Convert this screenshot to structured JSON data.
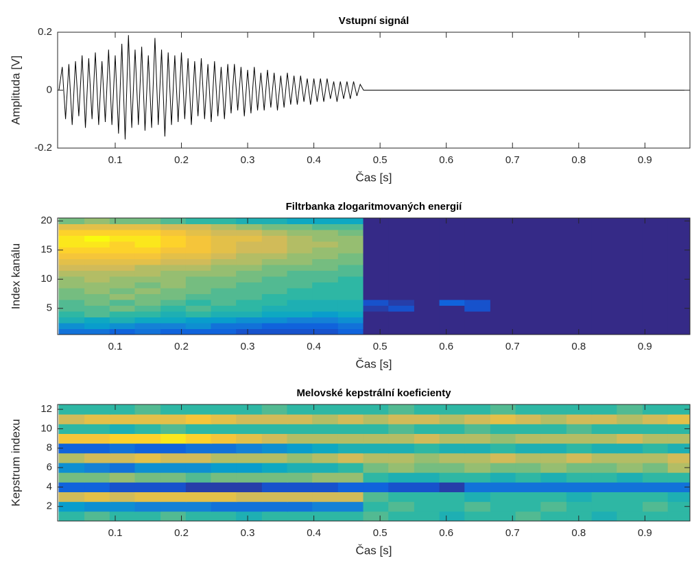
{
  "chart_data": [
    {
      "type": "line",
      "title": "Vstupní signál",
      "xlabel": "Čas [s]",
      "ylabel": "Amplituda [V]",
      "color": "#000000",
      "xlim": [
        0.013,
        0.968
      ],
      "ylim": [
        -0.2,
        0.2
      ],
      "xticks": [
        0.1,
        0.2,
        0.3,
        0.4,
        0.5,
        0.6,
        0.7,
        0.8,
        0.9
      ],
      "yticks": [
        -0.2,
        0,
        0.2
      ],
      "x": [
        0.015,
        0.02,
        0.025,
        0.03,
        0.035,
        0.04,
        0.045,
        0.05,
        0.055,
        0.06,
        0.065,
        0.07,
        0.075,
        0.08,
        0.085,
        0.09,
        0.095,
        0.1,
        0.105,
        0.11,
        0.115,
        0.12,
        0.125,
        0.13,
        0.135,
        0.14,
        0.145,
        0.15,
        0.155,
        0.16,
        0.165,
        0.17,
        0.175,
        0.18,
        0.185,
        0.19,
        0.195,
        0.2,
        0.205,
        0.21,
        0.215,
        0.22,
        0.225,
        0.23,
        0.235,
        0.24,
        0.245,
        0.25,
        0.255,
        0.26,
        0.265,
        0.27,
        0.275,
        0.28,
        0.285,
        0.29,
        0.295,
        0.3,
        0.305,
        0.31,
        0.315,
        0.32,
        0.325,
        0.33,
        0.335,
        0.34,
        0.345,
        0.35,
        0.355,
        0.36,
        0.365,
        0.37,
        0.375,
        0.38,
        0.385,
        0.39,
        0.395,
        0.4,
        0.405,
        0.41,
        0.415,
        0.42,
        0.425,
        0.43,
        0.435,
        0.44,
        0.445,
        0.45,
        0.455,
        0.46,
        0.465,
        0.47,
        0.475,
        0.48,
        0.97
      ],
      "values": [
        0,
        0.08,
        -0.1,
        0.09,
        -0.12,
        0.1,
        -0.09,
        0.12,
        -0.13,
        0.11,
        -0.1,
        0.13,
        -0.12,
        0.1,
        -0.11,
        0.14,
        -0.12,
        0.12,
        -0.15,
        0.16,
        -0.17,
        0.19,
        -0.13,
        0.14,
        -0.12,
        0.15,
        -0.14,
        0.12,
        -0.13,
        0.18,
        -0.12,
        0.14,
        -0.16,
        0.13,
        -0.12,
        0.12,
        -0.11,
        0.13,
        -0.1,
        0.11,
        -0.12,
        0.1,
        -0.09,
        0.11,
        -0.1,
        0.09,
        -0.11,
        0.1,
        -0.09,
        0.08,
        -0.1,
        0.09,
        -0.08,
        0.09,
        -0.07,
        0.08,
        -0.09,
        0.07,
        -0.08,
        0.08,
        -0.07,
        0.06,
        -0.07,
        0.07,
        -0.06,
        0.06,
        -0.07,
        0.05,
        -0.06,
        0.06,
        -0.05,
        0.05,
        -0.05,
        0.05,
        -0.04,
        0.04,
        -0.05,
        0.04,
        -0.04,
        0.04,
        -0.04,
        0.04,
        -0.03,
        0.03,
        -0.04,
        0.03,
        -0.03,
        0.03,
        -0.03,
        0.03,
        -0.02,
        0.02,
        0,
        0,
        0
      ]
    },
    {
      "type": "heatmap",
      "title": "Filtrbanka zlogaritmovaných energií",
      "xlabel": "Čas [s]",
      "ylabel": "Index kanálu",
      "xlim": [
        0.013,
        0.968
      ],
      "ylim": [
        0.5,
        20.5
      ],
      "xticks": [
        0.1,
        0.2,
        0.3,
        0.4,
        0.5,
        0.6,
        0.7,
        0.8,
        0.9
      ],
      "yticks": [
        5,
        10,
        15,
        20
      ],
      "colormap": [
        "#352a87",
        "#0f5cdd",
        "#1481d6",
        "#06a4ca",
        "#2eb7a4",
        "#87bf77",
        "#d1bb59",
        "#fec832",
        "#f9fb0e"
      ],
      "clim": [
        0,
        10
      ],
      "x": [
        0.034,
        0.073,
        0.111,
        0.149,
        0.188,
        0.226,
        0.264,
        0.302,
        0.341,
        0.379,
        0.417,
        0.456,
        0.494,
        0.532,
        0.571,
        0.609,
        0.647,
        0.686,
        0.724,
        0.762,
        0.801,
        0.839,
        0.877,
        0.916,
        0.954
      ],
      "y": [
        1,
        2,
        3,
        4,
        5,
        6,
        7,
        8,
        9,
        10,
        11,
        12,
        13,
        14,
        15,
        16,
        17,
        18,
        19,
        20
      ],
      "z": [
        [
          2,
          2,
          1.5,
          2,
          1.5,
          1.5,
          1.5,
          1,
          1,
          1,
          1,
          1.5,
          0,
          0,
          0,
          0,
          0,
          0,
          0,
          0,
          0,
          0,
          0,
          0,
          0
        ],
        [
          3,
          3.5,
          3,
          2.5,
          2.5,
          3,
          2,
          2,
          1.5,
          1.5,
          1.5,
          2,
          0,
          0,
          0,
          0,
          0,
          0,
          0,
          0,
          0,
          0,
          0,
          0,
          0
        ],
        [
          4.5,
          4,
          4.5,
          4,
          4,
          3.5,
          3.5,
          3,
          3,
          2.5,
          2.5,
          3,
          0,
          0,
          0,
          0,
          0,
          0,
          0,
          0,
          0,
          0,
          0,
          0,
          0
        ],
        [
          5,
          5.5,
          5,
          5,
          4.5,
          5,
          4.5,
          4.5,
          4,
          4,
          3.5,
          4,
          0,
          0,
          0,
          0,
          0,
          0,
          0,
          0,
          0,
          0,
          0,
          0,
          0
        ],
        [
          5.5,
          5.5,
          6,
          5.5,
          5,
          5.5,
          5,
          5,
          4.5,
          4.5,
          4.5,
          4.5,
          0.5,
          1,
          0,
          0,
          1,
          0,
          0,
          0,
          0,
          0,
          0,
          0,
          0
        ],
        [
          5.5,
          6,
          5.5,
          6,
          5.5,
          5,
          5.5,
          5,
          5,
          4.5,
          4.5,
          4.5,
          1,
          0.5,
          0,
          1.5,
          1,
          0,
          0,
          0,
          0,
          0,
          0,
          0,
          0
        ],
        [
          6,
          6,
          6.5,
          6,
          6,
          5.5,
          5.5,
          5.5,
          5,
          5,
          5,
          5,
          0,
          0,
          0,
          0,
          0,
          0,
          0,
          0,
          0,
          0,
          0,
          0,
          0
        ],
        [
          6,
          6.5,
          6,
          6.5,
          6,
          6,
          5.5,
          5.5,
          5.5,
          5,
          5,
          5,
          0,
          0,
          0,
          0,
          0,
          0,
          0,
          0,
          0,
          0,
          0,
          0,
          0
        ],
        [
          6.5,
          6.5,
          6.5,
          6,
          6.5,
          6,
          6,
          5.5,
          5.5,
          5.5,
          5,
          5,
          0,
          0,
          0,
          0,
          0,
          0,
          0,
          0,
          0,
          0,
          0,
          0,
          0
        ],
        [
          6.5,
          7,
          6.5,
          6.5,
          6.5,
          6,
          6,
          6,
          5.5,
          5.5,
          5.5,
          5,
          0,
          0,
          0,
          0,
          0,
          0,
          0,
          0,
          0,
          0,
          0,
          0,
          0
        ],
        [
          7,
          7,
          7,
          7,
          6.5,
          6.5,
          6.5,
          6,
          6,
          5.5,
          5.5,
          5.5,
          0,
          0,
          0,
          0,
          0,
          0,
          0,
          0,
          0,
          0,
          0,
          0,
          0
        ],
        [
          7.5,
          7.5,
          7.5,
          7,
          7,
          7,
          6.5,
          6.5,
          6,
          6,
          6,
          5.5,
          0,
          0,
          0,
          0,
          0,
          0,
          0,
          0,
          0,
          0,
          0,
          0,
          0
        ],
        [
          8,
          8,
          8,
          8,
          7.5,
          7.5,
          7,
          7,
          6.5,
          6.5,
          6,
          6,
          0,
          0,
          0,
          0,
          0,
          0,
          0,
          0,
          0,
          0,
          0,
          0,
          0
        ],
        [
          8.5,
          8.5,
          8.5,
          8.5,
          8,
          8,
          7.5,
          7,
          7,
          6.5,
          6.5,
          6,
          0,
          0,
          0,
          0,
          0,
          0,
          0,
          0,
          0,
          0,
          0,
          0,
          0
        ],
        [
          9,
          9,
          9,
          9,
          8.5,
          8.5,
          8,
          7.5,
          7.5,
          7,
          6.5,
          6.5,
          0,
          0,
          0,
          0,
          0,
          0,
          0,
          0,
          0,
          0,
          0,
          0,
          0
        ],
        [
          9.5,
          9.5,
          9,
          9.5,
          9,
          8.5,
          8,
          7.5,
          7.5,
          7,
          7,
          6.5,
          0,
          0,
          0,
          0,
          0,
          0,
          0,
          0,
          0,
          0,
          0,
          0,
          0
        ],
        [
          9.5,
          10,
          9.5,
          9.5,
          9,
          8.5,
          8,
          8,
          7.5,
          7,
          6.5,
          6.5,
          0,
          0,
          0,
          0,
          0,
          0,
          0,
          0,
          0,
          0,
          0,
          0,
          0
        ],
        [
          9,
          9,
          9,
          9,
          8.5,
          8,
          7.5,
          7.5,
          7,
          6.5,
          6.5,
          6,
          0,
          0,
          0,
          0,
          0,
          0,
          0,
          0,
          0,
          0,
          0,
          0,
          0
        ],
        [
          8,
          8,
          8,
          8,
          7.5,
          7.5,
          7,
          6.5,
          6,
          6,
          5.5,
          5.5,
          0,
          0,
          0,
          0,
          0,
          0,
          0,
          0,
          0,
          0,
          0,
          0,
          0
        ],
        [
          6,
          6.5,
          6,
          6,
          5.5,
          5,
          5,
          4.5,
          4.5,
          4,
          4,
          4,
          0,
          0,
          0,
          0,
          0,
          0,
          0,
          0,
          0,
          0,
          0,
          0,
          0
        ]
      ]
    },
    {
      "type": "heatmap",
      "title": "Melovské kepstrální koeficienty",
      "xlabel": "Čas [s]",
      "ylabel": "Kepstrum indexu",
      "xlim": [
        0.013,
        0.968
      ],
      "ylim": [
        0.5,
        12.5
      ],
      "xticks": [
        0.1,
        0.2,
        0.3,
        0.4,
        0.5,
        0.6,
        0.7,
        0.8,
        0.9
      ],
      "yticks": [
        2,
        4,
        6,
        8,
        10,
        12
      ],
      "colormap": [
        "#352a87",
        "#0f5cdd",
        "#1481d6",
        "#06a4ca",
        "#2eb7a4",
        "#87bf77",
        "#d1bb59",
        "#fec832",
        "#f9fb0e"
      ],
      "clim": [
        0,
        10
      ],
      "x": [
        0.034,
        0.073,
        0.111,
        0.149,
        0.188,
        0.226,
        0.264,
        0.302,
        0.341,
        0.379,
        0.417,
        0.456,
        0.494,
        0.532,
        0.571,
        0.609,
        0.647,
        0.686,
        0.724,
        0.762,
        0.801,
        0.839,
        0.877,
        0.916,
        0.954
      ],
      "y": [
        1,
        2,
        3,
        4,
        5,
        6,
        7,
        8,
        9,
        10,
        11,
        12
      ],
      "z": [
        [
          5,
          5.5,
          5,
          5,
          5.5,
          5,
          5,
          4.5,
          5,
          5,
          5,
          5,
          5.5,
          5,
          5,
          4.5,
          5,
          5,
          5.5,
          5,
          5,
          4.5,
          5,
          5,
          5
        ],
        [
          3.5,
          3,
          3,
          2.5,
          2.5,
          2.5,
          2,
          2,
          2,
          2,
          2.5,
          2.5,
          5,
          5.5,
          5,
          5,
          5.5,
          5,
          5,
          5.5,
          5,
          5,
          5,
          5.5,
          5
        ],
        [
          7.5,
          8,
          7.5,
          8,
          8,
          8,
          8,
          7.5,
          7.5,
          7.5,
          7.5,
          7.5,
          5.5,
          5,
          5,
          5,
          4.5,
          5,
          5,
          5,
          4.5,
          5,
          5,
          5,
          4.5
        ],
        [
          1.5,
          1.5,
          1,
          1,
          1,
          0.5,
          0.5,
          0.5,
          1,
          1,
          1,
          1.5,
          1.5,
          1,
          1,
          0.5,
          2,
          2,
          2,
          2,
          2,
          2,
          2,
          2,
          2
        ],
        [
          6,
          6,
          6.5,
          6,
          6,
          5.5,
          6,
          6,
          6,
          6,
          6.5,
          6.5,
          5,
          4.5,
          4.5,
          5,
          5,
          4.5,
          5,
          4.5,
          5,
          5,
          4.5,
          5,
          5
        ],
        [
          3,
          2.5,
          2,
          3,
          3,
          3,
          3.5,
          3.5,
          4,
          4.5,
          4.5,
          5,
          6,
          6.5,
          6,
          6,
          6.5,
          6,
          6,
          6.5,
          6,
          6,
          6.5,
          6,
          7
        ],
        [
          7,
          7.5,
          7.5,
          8,
          7.5,
          7.5,
          7,
          7,
          7,
          6.5,
          7,
          7.5,
          7,
          7,
          6.5,
          7,
          7,
          7.5,
          7,
          7,
          7.5,
          7,
          7,
          7,
          7.5
        ],
        [
          1.5,
          1.5,
          2,
          1.5,
          1.5,
          2,
          2,
          2.5,
          3,
          3.5,
          4,
          4.5,
          4.5,
          4.5,
          5,
          4.5,
          4.5,
          5,
          4.5,
          4.5,
          5,
          4.5,
          4.5,
          5,
          4.5
        ],
        [
          8.5,
          8.5,
          9,
          9,
          9.5,
          9,
          8.5,
          8,
          7.5,
          7,
          7,
          7,
          7,
          7,
          7.5,
          7,
          7,
          6.5,
          7,
          7,
          7,
          7,
          7.5,
          7,
          7
        ],
        [
          5,
          5,
          4.5,
          5,
          5.5,
          5,
          5,
          5,
          5,
          5,
          5,
          5,
          5,
          5.5,
          5,
          5,
          5.5,
          5,
          5,
          5,
          5.5,
          5,
          5,
          5,
          5
        ],
        [
          7.5,
          8,
          8,
          8,
          8,
          8.5,
          8,
          7.5,
          7.5,
          7.5,
          7,
          7.5,
          7,
          7.5,
          7.5,
          7,
          7.5,
          8,
          7.5,
          7,
          7.5,
          7.5,
          7,
          7.5,
          8
        ],
        [
          5,
          5,
          5,
          5.5,
          5,
          5,
          5,
          5,
          5.5,
          5,
          5,
          5,
          5,
          5.5,
          5,
          5,
          5,
          5.5,
          5,
          5,
          5,
          5,
          5.5,
          5,
          5
        ]
      ]
    }
  ]
}
